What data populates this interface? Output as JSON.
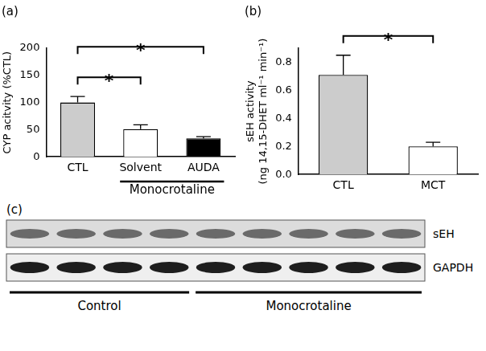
{
  "chart_data": [
    {
      "type": "bar",
      "title": "(a)",
      "y_label": "CYP acitvity (%CTL)",
      "categories": [
        "CTL",
        "Solvent",
        "AUDA"
      ],
      "values": [
        100,
        51,
        34
      ],
      "errors": [
        11,
        8,
        3
      ],
      "colors": [
        "#cccccc",
        "#ffffff",
        "#000000"
      ],
      "ylim": [
        0,
        200
      ],
      "yticks": [
        0,
        50,
        100,
        150,
        200
      ],
      "grid": false,
      "significance": [
        {
          "from": "CTL",
          "to": "Solvent",
          "label": "*"
        },
        {
          "from": "CTL",
          "to": "AUDA",
          "label": "*"
        }
      ],
      "groups": [
        {
          "label": "Monocrotaline",
          "categories": [
            "Solvent",
            "AUDA"
          ]
        }
      ]
    },
    {
      "type": "bar",
      "title": "(b)",
      "y_label": [
        "sEH activity",
        "(ng 14,15-DHET ml⁻¹ min⁻¹)"
      ],
      "categories": [
        "CTL",
        "MCT"
      ],
      "values": [
        0.71,
        0.2
      ],
      "errors": [
        0.14,
        0.03
      ],
      "colors": [
        "#cccccc",
        "#ffffff"
      ],
      "ylim": [
        0,
        0.9
      ],
      "yticks": [
        {
          "value": 0,
          "label": "0.0"
        },
        {
          "value": 0.2,
          "label": "0.2"
        },
        {
          "value": 0.4,
          "label": "0.4"
        },
        {
          "value": 0.6,
          "label": "0.6"
        },
        {
          "value": 0.8,
          "label": "0.8"
        }
      ],
      "grid": false,
      "significance": [
        {
          "from": "CTL",
          "to": "MCT",
          "label": "*"
        }
      ]
    }
  ],
  "blot": {
    "title": "(c)",
    "rows": [
      "sEH",
      "GAPDH"
    ],
    "groups": [
      {
        "label": "Control",
        "lanes": 4
      },
      {
        "label": "Monocrotaline",
        "lanes": 5
      }
    ]
  }
}
